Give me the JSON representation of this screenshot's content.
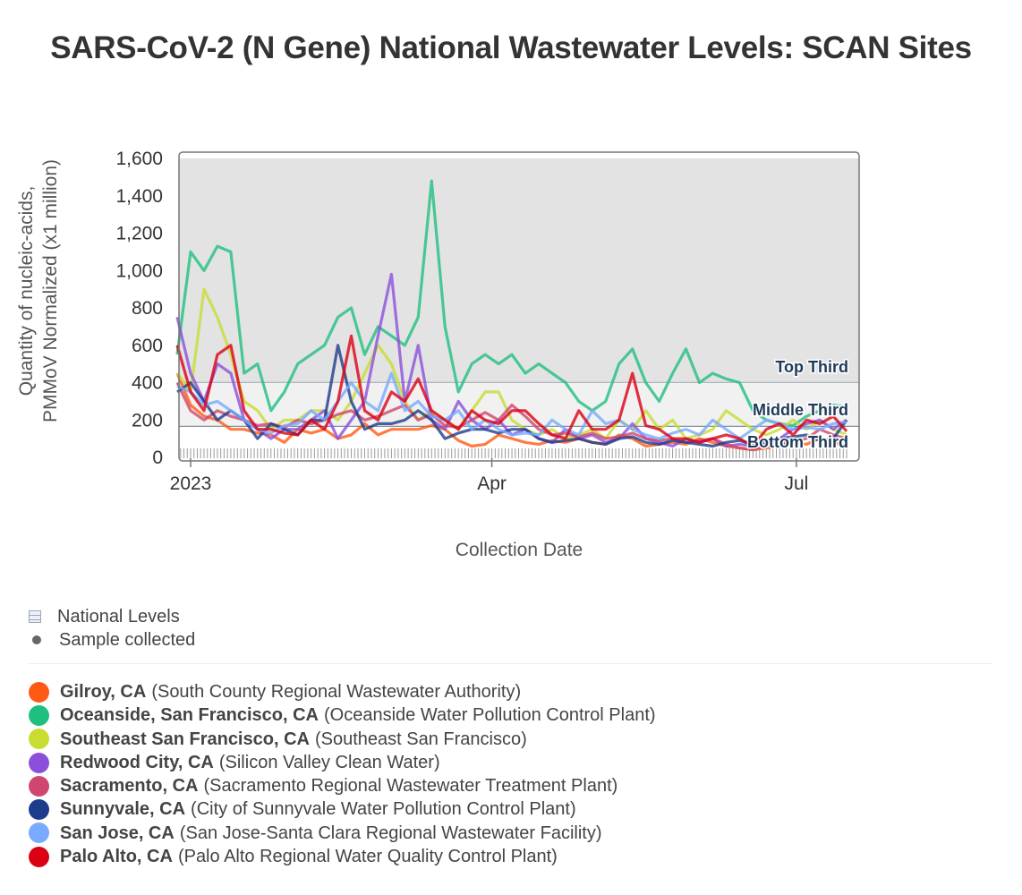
{
  "title": "SARS-CoV-2 (N Gene) National Wastewater Levels: SCAN Sites",
  "legend_top": {
    "national_levels": "National Levels",
    "sample_collected": "Sample collected"
  },
  "chart_data": {
    "type": "line",
    "title": "SARS-CoV-2 (N Gene) National Wastewater Levels: SCAN Sites",
    "xlabel": "Collection Date",
    "ylabel_line1": "Quantity of nucleic-acids,",
    "ylabel_line2": "PMMoV Normalized (x1 million)",
    "ylim": [
      0,
      1600
    ],
    "yticks": [
      0,
      200,
      400,
      600,
      800,
      1000,
      1200,
      1400,
      1600
    ],
    "ytick_labels": [
      "0",
      "200",
      "400",
      "600",
      "800",
      "1,000",
      "1,200",
      "1,400",
      "1,600"
    ],
    "xticks": [
      {
        "day": 0,
        "label": "2023"
      },
      {
        "day": 90,
        "label": "Apr"
      },
      {
        "day": 181,
        "label": "Jul"
      }
    ],
    "x_unit": "days since 2023-01-01",
    "bands": [
      {
        "label": "Top Third",
        "from": 400,
        "to": 1600,
        "color": "#e3e3e3"
      },
      {
        "label": "Middle Third",
        "from": 165,
        "to": 400,
        "color": "#f1f1f1"
      },
      {
        "label": "Bottom Third",
        "from": 0,
        "to": 165,
        "color": "#ffffff"
      }
    ],
    "x": [
      -4,
      0,
      4,
      8,
      12,
      16,
      20,
      24,
      28,
      32,
      36,
      40,
      44,
      48,
      52,
      56,
      60,
      64,
      68,
      72,
      76,
      80,
      84,
      88,
      92,
      96,
      100,
      104,
      108,
      112,
      116,
      120,
      124,
      128,
      132,
      136,
      140,
      144,
      148,
      152,
      156,
      160,
      164,
      168,
      172,
      176,
      180,
      184,
      188,
      192,
      196
    ],
    "series": [
      {
        "name": "Gilroy, CA",
        "facility": "(South County Regional Wastewater Authority)",
        "color": "#ff5a14",
        "values": [
          450,
          280,
          220,
          200,
          150,
          150,
          130,
          120,
          80,
          150,
          130,
          150,
          100,
          120,
          180,
          120,
          150,
          150,
          150,
          170,
          150,
          90,
          60,
          70,
          120,
          100,
          80,
          70,
          90,
          80,
          100,
          80,
          70,
          120,
          100,
          60,
          70,
          80,
          70,
          100,
          80,
          60,
          50,
          40,
          50,
          60,
          80,
          70,
          100,
          80,
          60
        ]
      },
      {
        "name": "Oceanside, San Francisco, CA",
        "facility": "(Oceanside Water Pollution Control Plant)",
        "color": "#1fbf7f",
        "values": [
          550,
          1100,
          1000,
          1130,
          1100,
          450,
          500,
          250,
          350,
          500,
          550,
          600,
          750,
          800,
          550,
          700,
          650,
          600,
          750,
          1480,
          700,
          350,
          500,
          550,
          500,
          550,
          450,
          500,
          450,
          400,
          300,
          250,
          300,
          500,
          580,
          400,
          300,
          450,
          580,
          400,
          450,
          420,
          400,
          250,
          200,
          180,
          170,
          220,
          250,
          280,
          270
        ]
      },
      {
        "name": "Southeast San Francisco, CA",
        "facility": "(Southeast San Francisco)",
        "color": "#c8dc32",
        "values": [
          450,
          350,
          900,
          750,
          550,
          300,
          250,
          150,
          200,
          200,
          250,
          250,
          200,
          300,
          450,
          600,
          500,
          300,
          200,
          250,
          200,
          150,
          250,
          350,
          350,
          200,
          150,
          120,
          150,
          100,
          120,
          150,
          100,
          200,
          150,
          250,
          150,
          200,
          100,
          120,
          150,
          250,
          200,
          150,
          120,
          150,
          200,
          150,
          200,
          150,
          120
        ]
      },
      {
        "name": "Redwood City, CA",
        "facility": "(Silicon Valley Clean Water)",
        "color": "#8c4fdc",
        "values": [
          750,
          450,
          300,
          500,
          450,
          200,
          150,
          100,
          150,
          150,
          200,
          250,
          100,
          200,
          300,
          650,
          980,
          300,
          600,
          200,
          150,
          300,
          200,
          150,
          200,
          120,
          150,
          100,
          80,
          150,
          100,
          120,
          80,
          100,
          180,
          100,
          80,
          60,
          100,
          80,
          100,
          60,
          70,
          60,
          70,
          100,
          150,
          180,
          200,
          150,
          200
        ]
      },
      {
        "name": "Sacramento, CA",
        "facility": "(Sacramento Regional Wastewater Treatment Plant)",
        "color": "#d0466e",
        "values": [
          400,
          250,
          200,
          250,
          220,
          200,
          170,
          180,
          160,
          200,
          180,
          200,
          230,
          250,
          200,
          220,
          250,
          280,
          200,
          230,
          170,
          160,
          200,
          240,
          200,
          280,
          220,
          150,
          120,
          130,
          110,
          130,
          100,
          110,
          130,
          100,
          90,
          100,
          80,
          90,
          100,
          70,
          50,
          40,
          60,
          70,
          90,
          100,
          150,
          120,
          100
        ]
      },
      {
        "name": "Sunnyvale, CA",
        "facility": "(City of Sunnyvale Water Pollution Control Plant)",
        "color": "#1e3c8c",
        "values": [
          350,
          400,
          300,
          200,
          250,
          200,
          100,
          180,
          150,
          120,
          200,
          200,
          600,
          300,
          150,
          180,
          180,
          200,
          250,
          200,
          100,
          130,
          150,
          150,
          130,
          150,
          150,
          100,
          80,
          90,
          100,
          80,
          70,
          100,
          110,
          80,
          70,
          90,
          80,
          70,
          60,
          80,
          90,
          70,
          80,
          100,
          110,
          120,
          90,
          100,
          200
        ]
      },
      {
        "name": "San Jose, CA",
        "facility": "(San Jose-Santa Clara Regional Wastewater Facility)",
        "color": "#78aaff",
        "values": [
          380,
          350,
          280,
          300,
          250,
          200,
          150,
          130,
          170,
          180,
          250,
          200,
          300,
          400,
          300,
          250,
          450,
          250,
          300,
          220,
          200,
          250,
          150,
          200,
          150,
          120,
          130,
          120,
          200,
          150,
          120,
          250,
          180,
          200,
          150,
          120,
          100,
          130,
          150,
          120,
          200,
          150,
          100,
          150,
          200,
          180,
          150,
          160,
          150,
          180,
          190
        ]
      },
      {
        "name": "Palo Alto, CA",
        "facility": "(Palo Alto Regional Water Quality Control Plant)",
        "color": "#dc0014",
        "values": [
          600,
          350,
          250,
          550,
          600,
          250,
          150,
          150,
          130,
          120,
          200,
          150,
          300,
          650,
          250,
          200,
          350,
          300,
          420,
          250,
          200,
          150,
          250,
          200,
          180,
          250,
          250,
          180,
          120,
          100,
          250,
          150,
          150,
          200,
          450,
          170,
          150,
          100,
          100,
          80,
          100,
          120,
          100,
          60,
          150,
          180,
          120,
          200,
          180,
          220,
          140
        ]
      }
    ]
  }
}
